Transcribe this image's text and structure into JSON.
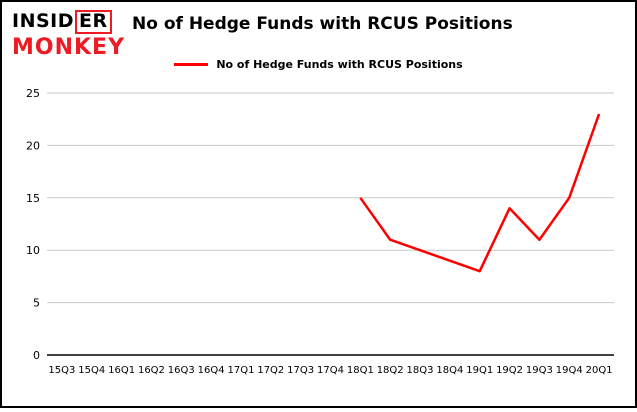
{
  "logo": {
    "insider_pre": "INSID",
    "insider_boxed": "ER",
    "monkey": "MONKEY"
  },
  "header": {
    "title": "No of Hedge Funds with RCUS Positions"
  },
  "legend": {
    "label": "No of Hedge Funds with RCUS Positions"
  },
  "chart_data": {
    "type": "line",
    "title": "No of Hedge Funds with RCUS Positions",
    "categories": [
      "15Q3",
      "15Q4",
      "16Q1",
      "16Q2",
      "16Q3",
      "16Q4",
      "17Q1",
      "17Q2",
      "17Q3",
      "17Q4",
      "18Q1",
      "18Q2",
      "18Q3",
      "18Q4",
      "19Q1",
      "19Q2",
      "19Q3",
      "19Q4",
      "20Q1"
    ],
    "series": [
      {
        "name": "No of Hedge Funds with RCUS Positions",
        "color": "#ff0000",
        "values": [
          null,
          null,
          null,
          null,
          null,
          null,
          null,
          null,
          null,
          null,
          15,
          11,
          10,
          9,
          8,
          14,
          11,
          15,
          23
        ]
      }
    ],
    "xlabel": "",
    "ylabel": "",
    "ylim": [
      0,
      25
    ],
    "yticks": [
      0,
      5,
      10,
      15,
      20,
      25
    ],
    "grid": true,
    "gridline_color": "#c9c9c9",
    "axis_color": "#000000",
    "legend_position": "top-center"
  }
}
